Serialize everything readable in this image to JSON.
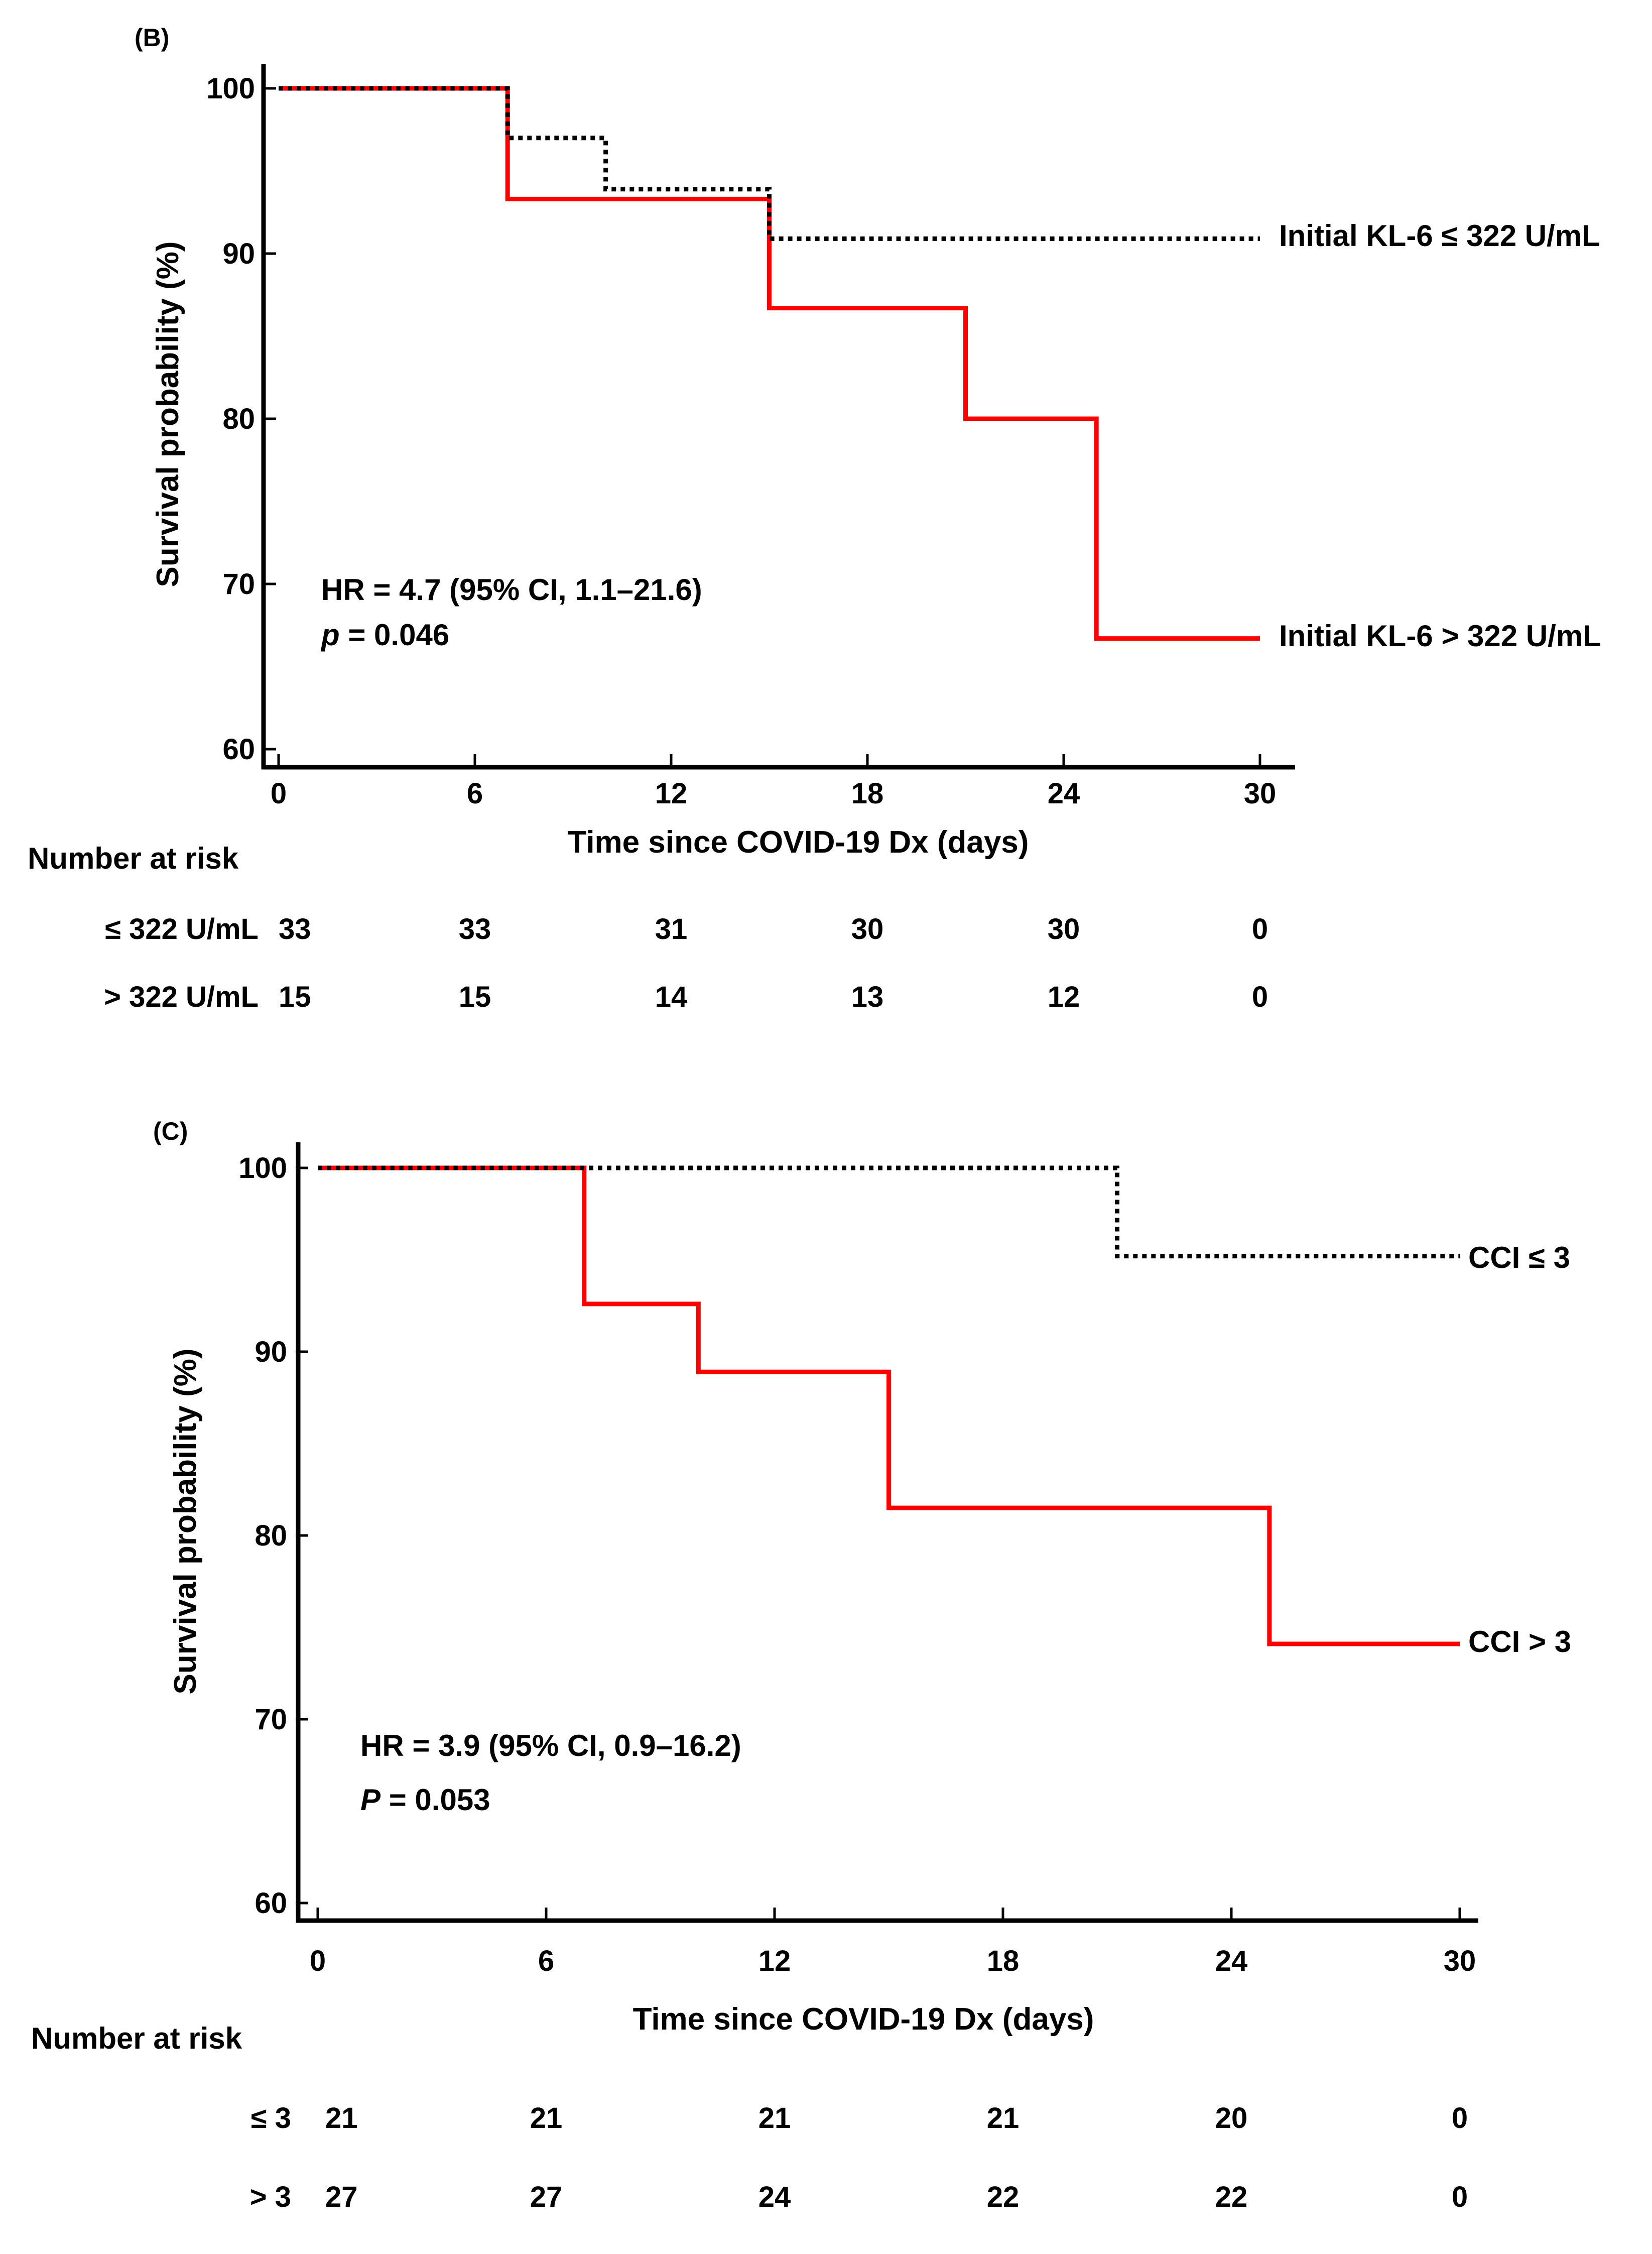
{
  "chart_data": [
    {
      "type": "line",
      "chart_subtype": "kaplan-meier",
      "panel_label": "(B)",
      "xlabel": "Time since COVID-19 Dx (days)",
      "ylabel": "Survival probability (%)",
      "xlim": [
        0,
        30
      ],
      "ylim": [
        60,
        100
      ],
      "x_ticks": [
        0,
        6,
        12,
        18,
        24,
        30
      ],
      "y_ticks": [
        60,
        70,
        80,
        90,
        100
      ],
      "x_tick_labels": [
        "0",
        "6",
        "12",
        "18",
        "24",
        "30"
      ],
      "y_tick_labels": [
        "60",
        "70",
        "80",
        "90",
        "100"
      ],
      "series": [
        {
          "name": "Initial KL-6 ≤ 322 U/mL",
          "style": "dotted",
          "color": "#000000",
          "steps": [
            [
              0,
              100
            ],
            [
              7,
              97
            ],
            [
              10,
              93.9
            ],
            [
              15,
              90.9
            ],
            [
              30,
              90.9
            ]
          ]
        },
        {
          "name": "Initial KL-6 > 322 U/mL",
          "style": "solid",
          "color": "#ff0000",
          "steps": [
            [
              0,
              100
            ],
            [
              7,
              93.3
            ],
            [
              15,
              86.7
            ],
            [
              21,
              80
            ],
            [
              25,
              66.7
            ],
            [
              30,
              66.7
            ]
          ]
        }
      ],
      "annotations": {
        "hr": "HR = 4.7 (95% CI, 1.1–21.6)",
        "p_letter": "p",
        "p_value": " = 0.046"
      },
      "risk_table": {
        "title": "Number at risk",
        "rows": [
          {
            "label": "≤ 322 U/mL",
            "counts": [
              "33",
              "33",
              "31",
              "30",
              "30",
              "0"
            ]
          },
          {
            "label": "> 322 U/mL",
            "counts": [
              "15",
              "15",
              "14",
              "13",
              "12",
              "0"
            ]
          }
        ]
      }
    },
    {
      "type": "line",
      "chart_subtype": "kaplan-meier",
      "panel_label": "(C)",
      "xlabel": "Time since COVID-19 Dx (days)",
      "ylabel": "Survival probability (%)",
      "xlim": [
        0,
        30
      ],
      "ylim": [
        60,
        100
      ],
      "x_ticks": [
        0,
        6,
        12,
        18,
        24,
        30
      ],
      "y_ticks": [
        60,
        70,
        80,
        90,
        100
      ],
      "x_tick_labels": [
        "0",
        "6",
        "12",
        "18",
        "24",
        "30"
      ],
      "y_tick_labels": [
        "60",
        "70",
        "80",
        "90",
        "100"
      ],
      "series": [
        {
          "name": "CCI ≤ 3",
          "style": "dotted",
          "color": "#000000",
          "steps": [
            [
              0,
              100
            ],
            [
              21,
              95.2
            ],
            [
              30,
              95.2
            ]
          ]
        },
        {
          "name": "CCI > 3",
          "style": "solid",
          "color": "#ff0000",
          "steps": [
            [
              0,
              100
            ],
            [
              7,
              92.6
            ],
            [
              10,
              88.9
            ],
            [
              15,
              81.5
            ],
            [
              25,
              74.1
            ],
            [
              30,
              74.1
            ]
          ]
        }
      ],
      "annotations": {
        "hr": "HR = 3.9 (95% CI, 0.9–16.2)",
        "p_letter": "P",
        "p_value": " = 0.053"
      },
      "risk_table": {
        "title": "Number at risk",
        "rows": [
          {
            "label": "≤ 3",
            "counts": [
              "21",
              "21",
              "21",
              "21",
              "20",
              "0"
            ]
          },
          {
            "label": "> 3",
            "counts": [
              "27",
              "27",
              "24",
              "22",
              "22",
              "0"
            ]
          }
        ]
      }
    }
  ]
}
